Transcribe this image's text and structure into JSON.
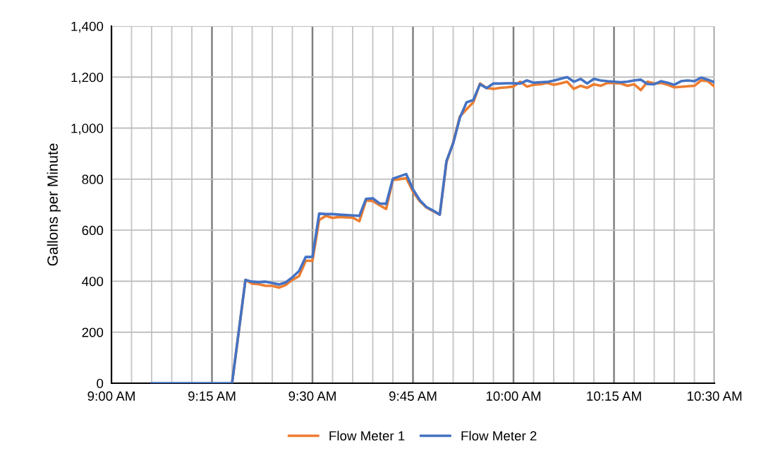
{
  "chart_data": {
    "type": "line",
    "ylabel": "Gallons per Minute",
    "x": [
      9.1,
      9.1167,
      9.1333,
      9.15,
      9.1667,
      9.1833,
      9.2,
      9.2167,
      9.2333,
      9.25,
      9.2667,
      9.2833,
      9.3,
      9.3333,
      9.35,
      9.3667,
      9.3833,
      9.4,
      9.4167,
      9.4333,
      9.45,
      9.4667,
      9.4833,
      9.5,
      9.5167,
      9.5333,
      9.55,
      9.5667,
      9.6,
      9.6167,
      9.6333,
      9.65,
      9.6667,
      9.6833,
      9.7,
      9.7167,
      9.7333,
      9.75,
      9.7667,
      9.7833,
      9.8,
      9.8167,
      9.8333,
      9.85,
      9.8667,
      9.8833,
      9.9,
      9.9167,
      9.9333,
      9.95,
      9.9667,
      9.9833,
      10.0,
      10.0167,
      10.0333,
      10.05,
      10.0667,
      10.0833,
      10.1,
      10.1167,
      10.1333,
      10.15,
      10.1667,
      10.1833,
      10.2,
      10.2167,
      10.2333,
      10.25,
      10.2667,
      10.2833,
      10.3,
      10.3167,
      10.3333,
      10.35,
      10.3667,
      10.3833,
      10.4,
      10.4167,
      10.4333,
      10.45,
      10.4667,
      10.4833,
      10.5
    ],
    "series": [
      {
        "name": "Flow Meter 1",
        "color": "#ed7d31",
        "values": [
          null,
          null,
          null,
          null,
          null,
          null,
          null,
          null,
          null,
          null,
          null,
          null,
          0,
          405,
          390,
          388,
          382,
          382,
          375,
          385,
          405,
          420,
          480,
          480,
          640,
          656,
          648,
          652,
          649,
          635,
          717,
          714,
          698,
          683,
          797,
          800,
          804,
          751,
          714,
          689,
          675,
          661,
          866,
          944,
          1046,
          1074,
          1101,
          1175,
          1157,
          1154,
          1158,
          1160,
          1163,
          1182,
          1163,
          1170,
          1172,
          1177,
          1170,
          1175,
          1182,
          1154,
          1166,
          1158,
          1172,
          1166,
          1177,
          1177,
          1175,
          1166,
          1172,
          1149,
          1182,
          1175,
          1177,
          1170,
          1160,
          1162,
          1164,
          1166,
          1187,
          1184,
          1163
        ]
      },
      {
        "name": "Flow Meter 2",
        "color": "#4472c4",
        "values": [
          0,
          0,
          0,
          0,
          0,
          0,
          0,
          0,
          0,
          0,
          0,
          0,
          0,
          405,
          398,
          396,
          398,
          393,
          387,
          395,
          415,
          440,
          495,
          495,
          665,
          663,
          663,
          661,
          658,
          656,
          723,
          725,
          705,
          703,
          802,
          811,
          820,
          760,
          718,
          691,
          677,
          661,
          871,
          940,
          1041,
          1101,
          1110,
          1172,
          1157,
          1175,
          1175,
          1176,
          1176,
          1175,
          1187,
          1178,
          1180,
          1181,
          1186,
          1193,
          1200,
          1182,
          1193,
          1175,
          1193,
          1187,
          1184,
          1182,
          1180,
          1182,
          1187,
          1190,
          1173,
          1172,
          1184,
          1178,
          1170,
          1184,
          1187,
          1184,
          1198,
          1190,
          1180
        ]
      }
    ],
    "xlim": [
      9,
      10.5
    ],
    "xticks": [
      {
        "value": 9,
        "label": "9:00 AM"
      },
      {
        "value": 9.05,
        "label": null
      },
      {
        "value": 9.1,
        "label": null
      },
      {
        "value": 9.15,
        "label": null
      },
      {
        "value": 9.2,
        "label": null
      },
      {
        "value": 9.25,
        "label": "9:15 AM"
      },
      {
        "value": 9.3,
        "label": null
      },
      {
        "value": 9.35,
        "label": null
      },
      {
        "value": 9.4,
        "label": null
      },
      {
        "value": 9.45,
        "label": null
      },
      {
        "value": 9.5,
        "label": "9:30 AM"
      },
      {
        "value": 9.55,
        "label": null
      },
      {
        "value": 9.6,
        "label": null
      },
      {
        "value": 9.65,
        "label": null
      },
      {
        "value": 9.7,
        "label": null
      },
      {
        "value": 9.75,
        "label": "9:45 AM"
      },
      {
        "value": 9.8,
        "label": null
      },
      {
        "value": 9.85,
        "label": null
      },
      {
        "value": 9.9,
        "label": null
      },
      {
        "value": 9.95,
        "label": null
      },
      {
        "value": 10,
        "label": "10:00 AM"
      },
      {
        "value": 10.05,
        "label": null
      },
      {
        "value": 10.1,
        "label": null
      },
      {
        "value": 10.15,
        "label": null
      },
      {
        "value": 10.2,
        "label": null
      },
      {
        "value": 10.25,
        "label": "10:15 AM"
      },
      {
        "value": 10.3,
        "label": null
      },
      {
        "value": 10.35,
        "label": null
      },
      {
        "value": 10.4,
        "label": null
      },
      {
        "value": 10.45,
        "label": null
      },
      {
        "value": 10.5,
        "label": "10:30 AM"
      }
    ],
    "ylim": [
      0,
      1400
    ],
    "yticks": [
      {
        "value": 0,
        "label": "0"
      },
      {
        "value": 200,
        "label": "200"
      },
      {
        "value": 400,
        "label": "400"
      },
      {
        "value": 600,
        "label": "600"
      },
      {
        "value": 800,
        "label": "800"
      },
      {
        "value": 1000,
        "label": "1,000"
      },
      {
        "value": 1200,
        "label": "1,200"
      },
      {
        "value": 1400,
        "label": "1,400"
      }
    ],
    "grid": true,
    "legend": "bottom",
    "marker": "none",
    "line_style": "solid"
  }
}
